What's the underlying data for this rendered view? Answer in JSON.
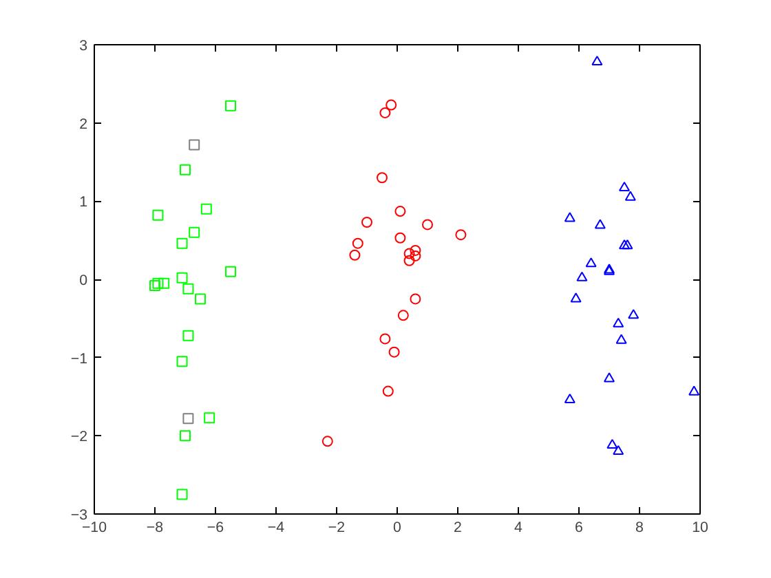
{
  "chart_data": {
    "type": "scatter",
    "xlim": [
      -10,
      10
    ],
    "ylim": [
      -3,
      3
    ],
    "xticks": [
      -10,
      -8,
      -6,
      -4,
      -2,
      0,
      2,
      4,
      6,
      8,
      10
    ],
    "yticks": [
      -3,
      -2,
      -1,
      0,
      1,
      2,
      3
    ],
    "grid": false,
    "series": [
      {
        "color": "#00ff00",
        "marker": "square",
        "x": [
          -5.5,
          -7,
          -6.3,
          -7.9,
          -6.7,
          -7.1,
          -5.5,
          -7.1,
          -7.9,
          -7.7,
          -8,
          -6.9,
          -6.5,
          -6.9,
          -7.1,
          -6.2,
          -7,
          -7.1
        ],
        "values": [
          2.22,
          1.4,
          0.9,
          0.82,
          0.6,
          0.46,
          0.1,
          0.02,
          -0.05,
          -0.05,
          -0.08,
          -0.12,
          -0.25,
          -0.72,
          -1.05,
          -1.77,
          -2,
          -2.75
        ]
      },
      {
        "color": "#808080",
        "marker": "square",
        "x": [
          -6.7,
          -6.9
        ],
        "values": [
          1.72,
          -1.78
        ]
      },
      {
        "color": "#ff0000",
        "marker": "circle",
        "x": [
          -0.2,
          -0.4,
          -0.5,
          0.1,
          -1.0,
          1.0,
          0.1,
          2.1,
          -1.3,
          -1.4,
          0.6,
          0.4,
          0.6,
          0.4,
          0.6,
          0.2,
          -0.4,
          -0.1,
          -0.3,
          -2.3
        ],
        "values": [
          2.23,
          2.13,
          1.3,
          0.87,
          0.73,
          0.7,
          0.53,
          0.57,
          0.46,
          0.31,
          0.37,
          0.33,
          0.3,
          0.24,
          -0.25,
          -0.46,
          -0.76,
          -0.93,
          -1.43,
          -2.07
        ]
      },
      {
        "color": "#0000ff",
        "marker": "triangle",
        "x": [
          6.6,
          7.5,
          7.7,
          5.7,
          6.7,
          7.5,
          7.6,
          6.4,
          7.0,
          7.0,
          6.1,
          5.9,
          7.8,
          7.3,
          7.4,
          7.0,
          9.8,
          5.7,
          7.1,
          7.3
        ],
        "values": [
          2.78,
          1.17,
          1.05,
          0.78,
          0.69,
          0.43,
          0.43,
          0.2,
          0.1,
          0.12,
          0.02,
          -0.25,
          -0.46,
          -0.57,
          -0.78,
          -1.27,
          -1.44,
          -1.54,
          -2.12,
          -2.2
        ]
      }
    ]
  }
}
